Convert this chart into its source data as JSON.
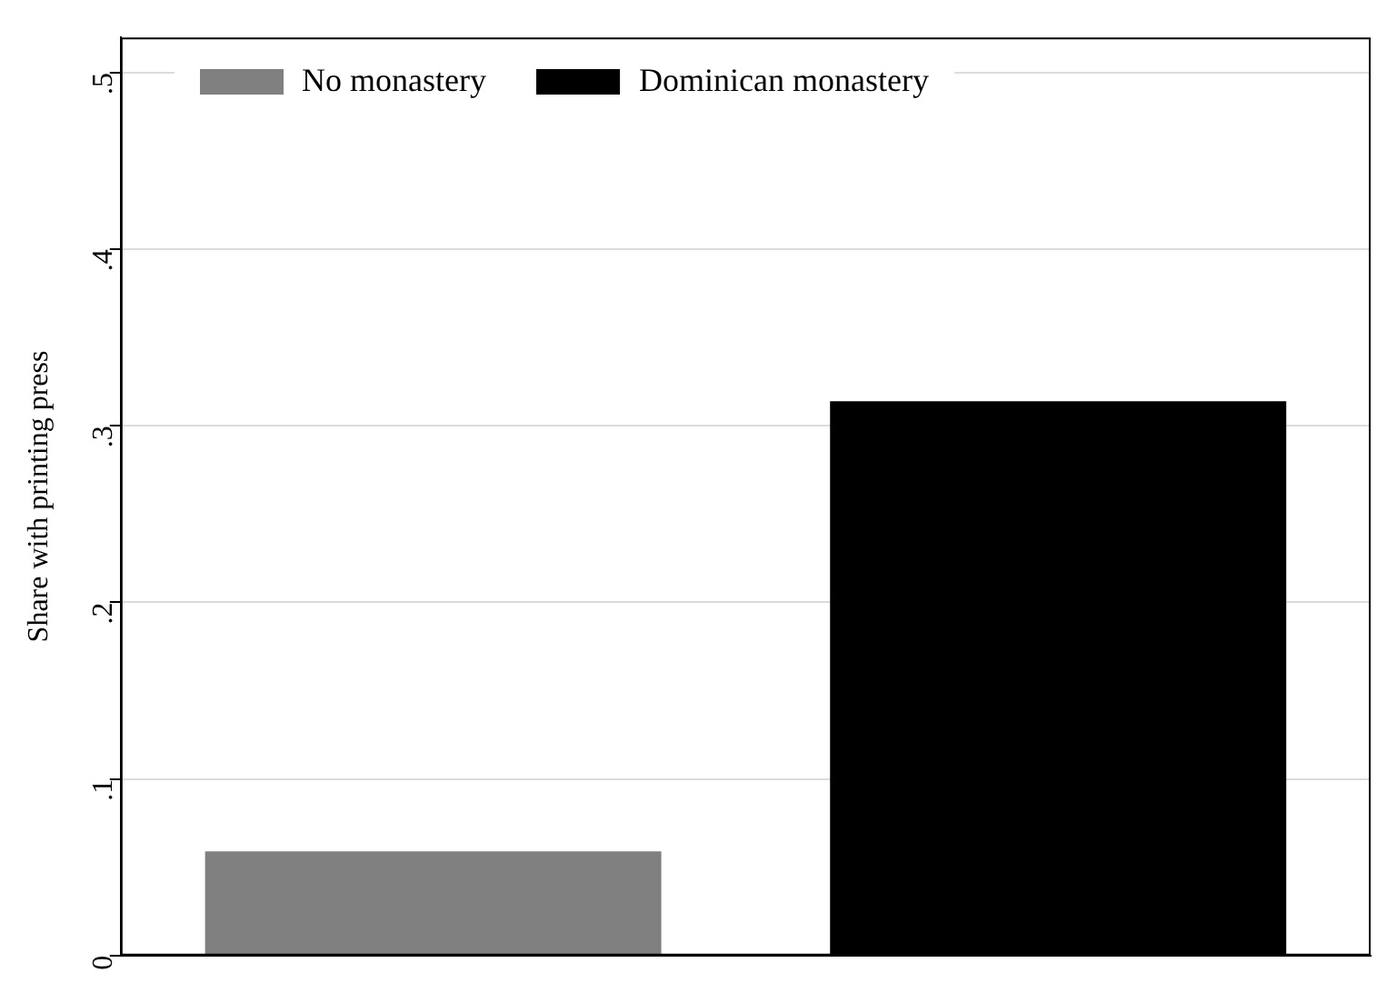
{
  "chart_data": {
    "type": "bar",
    "ylabel": "Share with printing press",
    "categories": [
      null,
      null
    ],
    "series": [
      {
        "name": "No monastery",
        "color": "#808080",
        "values": [
          0.059,
          null
        ]
      },
      {
        "name": "Dominican monastery",
        "color": "#000000",
        "values": [
          null,
          0.314
        ]
      }
    ],
    "ylim": [
      0,
      0.52
    ],
    "yticks": [
      {
        "value": 0,
        "label": "0"
      },
      {
        "value": 0.1,
        "label": ".1"
      },
      {
        "value": 0.2,
        "label": ".2"
      },
      {
        "value": 0.3,
        "label": ".3"
      },
      {
        "value": 0.4,
        "label": ".4"
      },
      {
        "value": 0.5,
        "label": ".5"
      }
    ],
    "grid": "y",
    "legend": "top left"
  }
}
